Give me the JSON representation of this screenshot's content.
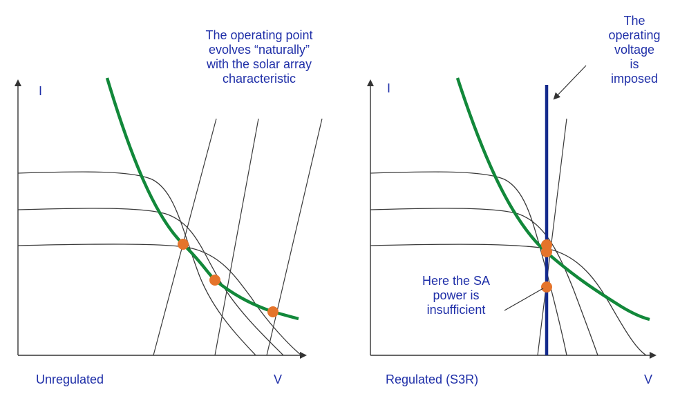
{
  "left_panel": {
    "caption": "Unregulated",
    "x_axis_label": "V",
    "y_axis_label": "I",
    "annotation": {
      "lines": [
        "The operating point",
        "evolves “naturally”",
        "with the solar array",
        "characteristic"
      ]
    }
  },
  "right_panel": {
    "caption": "Regulated (S3R)",
    "x_axis_label": "V",
    "y_axis_label": "I",
    "annotation_top": {
      "lines": [
        "The operating",
        "voltage",
        "is imposed"
      ]
    },
    "annotation_bottom": {
      "lines": [
        "Here the SA",
        "power is",
        "insufficient"
      ]
    }
  },
  "colors": {
    "text": "#1f2fa8",
    "load_curve": "#12883a",
    "operating_point": "#e5742b",
    "imposed_voltage_line": "#142a8c",
    "curves": "#3a3a3a",
    "axes": "#333333"
  }
}
